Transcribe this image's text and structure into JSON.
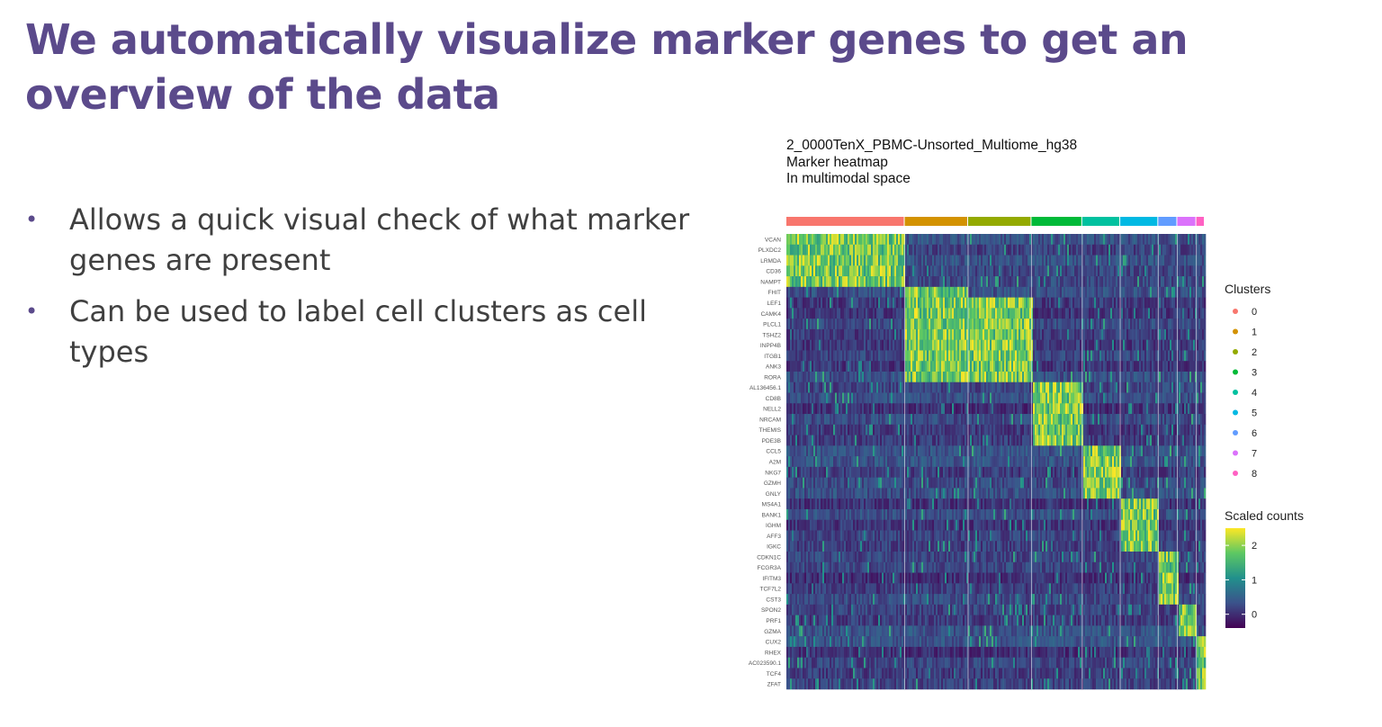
{
  "slide": {
    "title": "We automatically visualize marker genes to get an overview of the data",
    "bullets": [
      "Allows a quick visual check of what marker genes are present",
      "Can be used to label cell clusters as cell types"
    ]
  },
  "chart_data": {
    "type": "heatmap",
    "title_lines": [
      "2_0000TenX_PBMC-Unsorted_Multiome_hg38",
      "Marker heatmap",
      "In multimodal space"
    ],
    "genes": [
      "VCAN",
      "PLXDC2",
      "LRMDA",
      "CD36",
      "NAMPT",
      "FHIT",
      "LEF1",
      "CAMK4",
      "PLCL1",
      "TSHZ2",
      "INPP4B",
      "ITGB1",
      "ANK3",
      "RORA",
      "AL136456.1",
      "CD8B",
      "NELL2",
      "NRCAM",
      "THEMIS",
      "PDE3B",
      "CCL5",
      "A2M",
      "NKG7",
      "GZMH",
      "GNLY",
      "MS4A1",
      "BANK1",
      "IGHM",
      "AFF3",
      "IGKC",
      "CDKN1C",
      "FCGR3A",
      "IFITM3",
      "TCF7L2",
      "CST3",
      "SPON2",
      "PRF1",
      "GZMA",
      "CUX2",
      "RHEX",
      "AC023590.1",
      "TCF4",
      "ZFAT"
    ],
    "clusters": [
      "0",
      "1",
      "2",
      "3",
      "4",
      "5",
      "6",
      "7",
      "8"
    ],
    "cluster_colors": [
      "#F8766D",
      "#D39200",
      "#93AA00",
      "#00BA38",
      "#00C19F",
      "#00B9E3",
      "#619CFF",
      "#DB72FB",
      "#FF61C3"
    ],
    "cluster_fraction": [
      0.28,
      0.15,
      0.15,
      0.12,
      0.09,
      0.09,
      0.045,
      0.045,
      0.02
    ],
    "cluster_gene_groups": [
      [
        0,
        4
      ],
      [
        5,
        13
      ],
      [
        6,
        13
      ],
      [
        14,
        19
      ],
      [
        20,
        24
      ],
      [
        25,
        29
      ],
      [
        30,
        34
      ],
      [
        35,
        37
      ],
      [
        38,
        42
      ]
    ],
    "legend": {
      "clusters_title": "Clusters",
      "scale_title": "Scaled counts",
      "scale_ticks": [
        2,
        1,
        0
      ],
      "scale_range": [
        -0.4,
        2.5
      ],
      "scale_colors": [
        "#440154",
        "#3B528B",
        "#21908C",
        "#5DC863",
        "#FDE725"
      ]
    }
  }
}
